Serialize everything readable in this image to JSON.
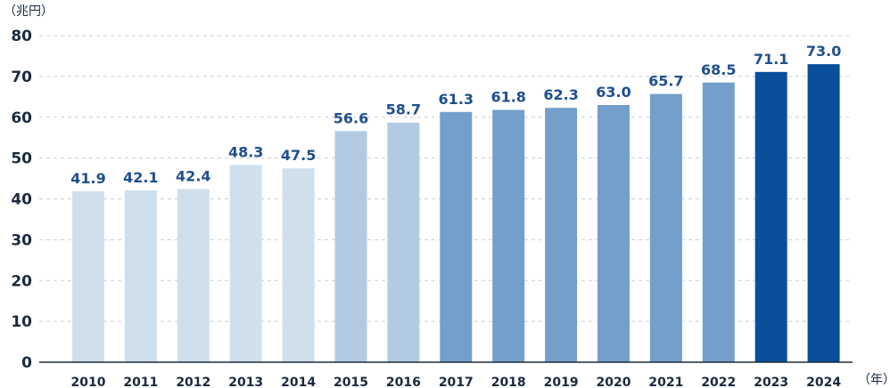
{
  "chart_data": {
    "type": "bar",
    "categories": [
      "2010",
      "2011",
      "2012",
      "2013",
      "2014",
      "2015",
      "2016",
      "2017",
      "2018",
      "2019",
      "2020",
      "2021",
      "2022",
      "2023",
      "2024"
    ],
    "values": [
      41.9,
      42.1,
      42.4,
      48.3,
      47.5,
      56.6,
      58.7,
      61.3,
      61.8,
      62.3,
      63.0,
      65.7,
      68.5,
      71.1,
      73.0
    ],
    "value_labels": [
      "41.9",
      "42.1",
      "42.4",
      "48.3",
      "47.5",
      "56.6",
      "58.7",
      "61.3",
      "61.8",
      "62.3",
      "63.0",
      "65.7",
      "68.5",
      "71.1",
      "73.0"
    ],
    "bar_colors": [
      "#d0dfec",
      "#d0dfec",
      "#d0dfec",
      "#d0dfec",
      "#d0dfec",
      "#b3cbe2",
      "#b3cbe2",
      "#749fca",
      "#749fca",
      "#749fca",
      "#749fca",
      "#749fca",
      "#749fca",
      "#0a4f9a",
      "#0a4f9a"
    ],
    "ylabel": "（兆円）",
    "xlabel": "（年）",
    "ylim": [
      0,
      80
    ],
    "yticks": [
      0,
      10,
      20,
      30,
      40,
      50,
      60,
      70,
      80
    ],
    "grid": true,
    "grid_style": "dashed",
    "title": "",
    "colors": {
      "axis": "#1a2a3f",
      "grid": "#c9cfd6",
      "label": "#1f4f8f"
    }
  }
}
